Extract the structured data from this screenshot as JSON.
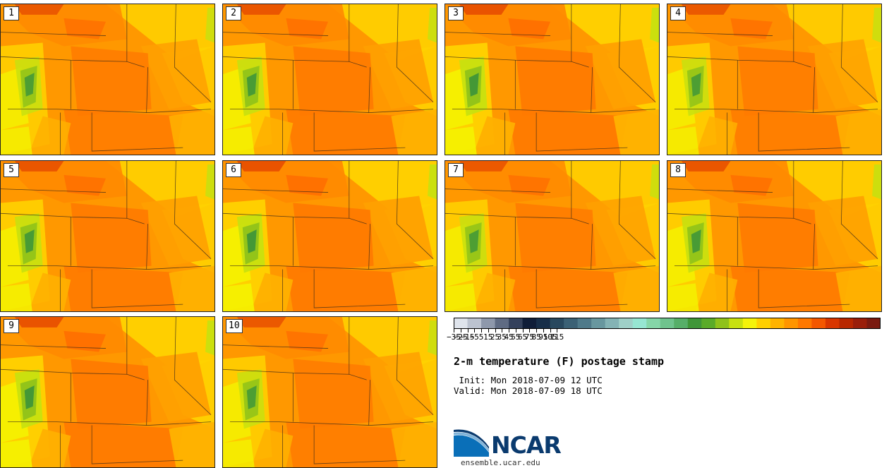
{
  "panels": [
    {
      "label": "1"
    },
    {
      "label": "2"
    },
    {
      "label": "3"
    },
    {
      "label": "4"
    },
    {
      "label": "5"
    },
    {
      "label": "6"
    },
    {
      "label": "7"
    },
    {
      "label": "8"
    },
    {
      "label": "9"
    },
    {
      "label": "10"
    }
  ],
  "colorbar": {
    "colors": [
      "#dfe4ec",
      "#bcc3d0",
      "#8e98ab",
      "#5f6b83",
      "#34415c",
      "#0f1d38",
      "#172e49",
      "#28485e",
      "#3b6175",
      "#4f7a8a",
      "#68979f",
      "#84b3b5",
      "#9fd0c8",
      "#96e6d2",
      "#85d6a8",
      "#6fc38d",
      "#56ae68",
      "#3f9638",
      "#5aab28",
      "#8fc21a",
      "#c8e00f",
      "#f5f30a",
      "#ffd000",
      "#ffb300",
      "#ff9500",
      "#ff7800",
      "#f45700",
      "#d93600",
      "#b82700",
      "#9a1e0a",
      "#7a1a10"
    ],
    "ticks": [
      "−35",
      "−25",
      "−15",
      "−5",
      "5",
      "15",
      "25",
      "35",
      "45",
      "55",
      "65",
      "75",
      "85",
      "95",
      "105",
      "115"
    ],
    "min": -35,
    "max": 120
  },
  "title": "2-m temperature (F) postage stamp",
  "init": " Init: Mon 2018-07-09 12 UTC",
  "valid": "Valid: Mon 2018-07-09 18 UTC",
  "logo": {
    "text": "NCAR",
    "url": "ensemble.ucar.edu"
  }
}
